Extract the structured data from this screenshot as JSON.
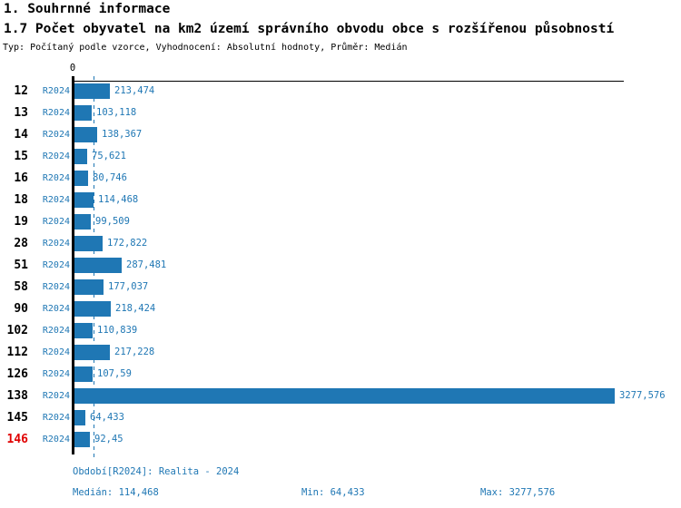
{
  "header": {
    "section_title": "1. Souhrnné informace",
    "chart_title": "1.7 Počet obyvatel na km2 území správního obvodu obce s rozšířenou působností",
    "subtitle": "Typ: Počítaný podle vzorce, Vyhodnocení: Absolutní hodnoty, Průměr: Medián"
  },
  "chart_data": {
    "type": "bar",
    "orientation": "horizontal",
    "axis_zero_label": "0",
    "period_label": "R2024",
    "categories": [
      "12",
      "13",
      "14",
      "15",
      "16",
      "18",
      "19",
      "28",
      "51",
      "58",
      "90",
      "102",
      "112",
      "126",
      "138",
      "145",
      "146"
    ],
    "values": [
      213.474,
      103.118,
      138.367,
      75.621,
      80.746,
      114.468,
      99.509,
      172.822,
      287.481,
      177.037,
      218.424,
      110.839,
      217.228,
      107.59,
      3277.576,
      64.433,
      92.45
    ],
    "value_labels": [
      "213,474",
      "103,118",
      "138,367",
      "75,621",
      "80,746",
      "114,468",
      "99,509",
      "172,822",
      "287,481",
      "177,037",
      "218,424",
      "110,839",
      "217,228",
      "107,59",
      "3277,576",
      "64,433",
      "92,45"
    ],
    "highlighted_category": "146",
    "median_value": 114.468,
    "xlim": [
      0,
      3277.576
    ],
    "bar_color": "#1F77B4",
    "highlight_color": "#E00000",
    "grid": false,
    "legend": false
  },
  "footer": {
    "period_info": "Období[R2024]: Realita - 2024",
    "median": "Medián: 114,468",
    "min": "Min: 64,433",
    "max": "Max: 3277,576"
  }
}
